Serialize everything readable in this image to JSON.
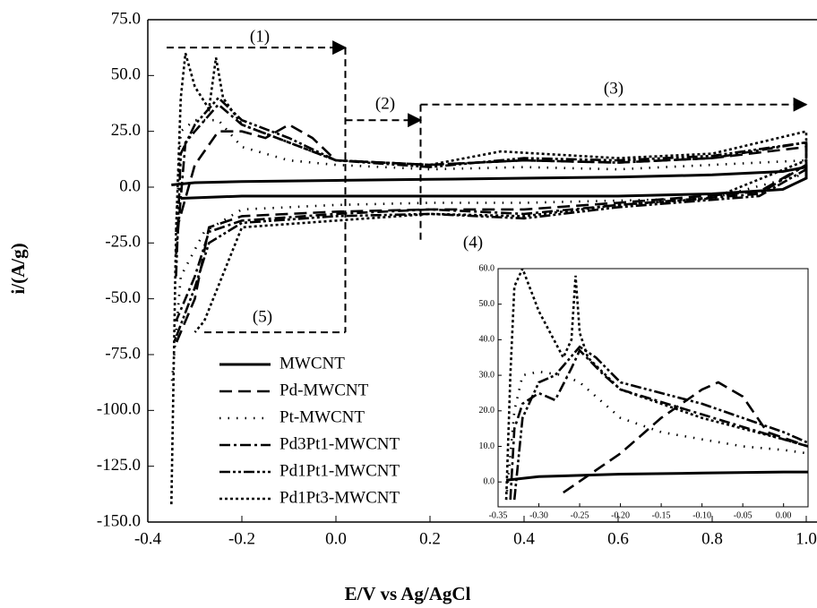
{
  "chart_data": [
    {
      "type": "line",
      "xlabel": "E/V vs Ag/AgCl",
      "ylabel": "i/(A/g)",
      "xlim": [
        -0.4,
        1.02
      ],
      "ylim": [
        -150,
        75
      ],
      "xticks": [
        -0.4,
        -0.2,
        {
          "value": 0,
          "label": "0.0"
        },
        0.2,
        0.4,
        0.6,
        0.8,
        {
          "value": 1,
          "label": "1.0"
        }
      ],
      "yticks": [
        {
          "value": 75,
          "label": "75.0"
        },
        {
          "value": 50,
          "label": "50.0"
        },
        {
          "value": 25,
          "label": "25.0"
        },
        {
          "value": 0,
          "label": "0.0"
        },
        {
          "value": -25,
          "label": "-25.0"
        },
        {
          "value": -50,
          "label": "-50.0"
        },
        {
          "value": -75,
          "label": "-75.0"
        },
        {
          "value": -100,
          "label": "-100.0"
        },
        {
          "value": -125,
          "label": "-125.0"
        },
        {
          "value": -150,
          "label": "-150.0"
        }
      ],
      "legend": "lower left",
      "annotations": [
        "(1)",
        "(2)",
        "(3)",
        "(4)",
        "(5)"
      ],
      "series": [
        {
          "name": "MWCNT",
          "color": "#000000",
          "linestyle": "solid",
          "x": [
            -0.35,
            -0.3,
            -0.2,
            0,
            0.2,
            0.4,
            0.6,
            0.8,
            0.95,
            1.0,
            1.0,
            0.95,
            0.8,
            0.6,
            0.4,
            0.2,
            0,
            -0.2,
            -0.33
          ],
          "values": [
            1,
            2,
            2.5,
            3,
            3.5,
            4,
            4.5,
            5.5,
            7,
            9,
            4,
            -1,
            -3,
            -4,
            -4,
            -4,
            -4,
            -4,
            -5
          ]
        },
        {
          "name": "Pd-MWCNT",
          "color": "#000000",
          "linestyle": "dashed",
          "x": [
            -0.34,
            -0.3,
            -0.25,
            -0.2,
            -0.15,
            -0.1,
            -0.05,
            0,
            0.2,
            0.4,
            0.6,
            0.8,
            1.0,
            1.0,
            0.9,
            0.6,
            0.4,
            0.2,
            0,
            -0.2,
            -0.27,
            -0.3,
            -0.34
          ],
          "values": [
            -20,
            10,
            25,
            25,
            22,
            28,
            22,
            12,
            10,
            12,
            11,
            13,
            18,
            10,
            -2,
            -7,
            -10,
            -10,
            -11,
            -13,
            -18,
            -50,
            -70
          ]
        },
        {
          "name": "Pt-MWCNT",
          "color": "#000000",
          "linestyle": "dotted",
          "x": [
            -0.34,
            -0.33,
            -0.3,
            -0.25,
            -0.2,
            -0.1,
            0,
            0.2,
            0.4,
            0.6,
            0.8,
            1.0,
            1.0,
            0.8,
            0.6,
            0.4,
            0.2,
            0,
            -0.2,
            -0.28,
            -0.33,
            -0.35
          ],
          "values": [
            -20,
            25,
            30,
            30,
            18,
            12,
            10,
            8,
            9,
            8,
            10,
            12,
            6,
            -5,
            -6,
            -7,
            -7,
            -8,
            -10,
            -20,
            -40,
            -90
          ]
        },
        {
          "name": "Pd3Pt1-MWCNT",
          "color": "#000000",
          "linestyle": "dashdot",
          "x": [
            -0.34,
            -0.32,
            -0.3,
            -0.25,
            -0.2,
            -0.1,
            0,
            0.2,
            0.4,
            0.6,
            0.8,
            1.0,
            1.0,
            0.9,
            0.6,
            0.4,
            0.2,
            0,
            -0.2,
            -0.27,
            -0.3,
            -0.34
          ],
          "values": [
            -30,
            20,
            25,
            37,
            28,
            20,
            12,
            10,
            12,
            11,
            13,
            20,
            10,
            -3,
            -8,
            -12,
            -10,
            -12,
            -15,
            -20,
            -40,
            -60
          ]
        },
        {
          "name": "Pd1Pt1-MWCNT",
          "color": "#000000",
          "linestyle": "dashdotdot",
          "x": [
            -0.34,
            -0.33,
            -0.3,
            -0.25,
            -0.2,
            -0.1,
            0,
            0.2,
            0.4,
            0.6,
            0.8,
            1.0,
            1.0,
            0.9,
            0.6,
            0.4,
            0.2,
            0,
            -0.2,
            -0.27,
            -0.3,
            -0.345
          ],
          "values": [
            -40,
            15,
            28,
            40,
            30,
            22,
            12,
            9,
            13,
            12,
            14,
            20,
            8,
            -4,
            -9,
            -14,
            -12,
            -13,
            -16,
            -25,
            -45,
            -70
          ]
        },
        {
          "name": "Pd1Pt3-MWCNT",
          "color": "#000000",
          "linestyle": "densedot",
          "x": [
            -0.35,
            -0.34,
            -0.33,
            -0.32,
            -0.3,
            -0.27,
            -0.255,
            -0.24,
            -0.2,
            -0.1,
            0,
            0.2,
            0.35,
            0.6,
            0.8,
            1.0,
            1.0,
            0.8,
            0.6,
            0.4,
            0.2,
            0,
            -0.2,
            -0.28,
            -0.3
          ],
          "values": [
            -142,
            -20,
            40,
            60,
            45,
            35,
            58,
            40,
            28,
            20,
            12,
            10,
            16,
            13,
            15,
            25,
            12,
            -5,
            -8,
            -13,
            -12,
            -15,
            -18,
            -60,
            -65
          ]
        }
      ]
    },
    {
      "type": "line",
      "xlim": [
        -0.35,
        0.03
      ],
      "ylim": [
        -7,
        60
      ],
      "xticks": [
        -0.35,
        {
          "value": -0.3,
          "label": "-0.30"
        },
        {
          "value": -0.25,
          "label": "-0.25"
        },
        {
          "value": -0.2,
          "label": "-0.20"
        },
        {
          "value": -0.15,
          "label": "-0.15"
        },
        {
          "value": -0.1,
          "label": "-0.10"
        },
        {
          "value": -0.05,
          "label": "-0.05"
        },
        {
          "value": 0,
          "label": "0.00"
        }
      ],
      "yticks": [
        {
          "value": 0,
          "label": "0.0"
        },
        {
          "value": 10,
          "label": "10.0"
        },
        {
          "value": 20,
          "label": "20.0"
        },
        {
          "value": 30,
          "label": "30.0"
        },
        {
          "value": 40,
          "label": "40.0"
        },
        {
          "value": 50,
          "label": "50.0"
        },
        {
          "value": 60,
          "label": "60.0"
        }
      ],
      "series": [
        {
          "color": "#000000",
          "linestyle": "solid",
          "x": [
            -0.34,
            -0.3,
            -0.2,
            -0.1,
            0,
            0.03
          ],
          "values": [
            0.5,
            1.5,
            2.2,
            2.5,
            2.8,
            2.8
          ]
        },
        {
          "color": "#000000",
          "linestyle": "dashed",
          "x": [
            -0.27,
            -0.2,
            -0.15,
            -0.1,
            -0.08,
            -0.05,
            -0.02,
            0.03
          ],
          "values": [
            -3,
            8,
            18,
            26,
            28,
            24,
            14,
            10
          ]
        },
        {
          "color": "#000000",
          "linestyle": "dotted",
          "x": [
            -0.34,
            -0.33,
            -0.32,
            -0.3,
            -0.27,
            -0.25,
            -0.2,
            -0.15,
            -0.1,
            -0.05,
            0,
            0.03
          ],
          "values": [
            -5,
            20,
            30,
            31,
            30,
            28,
            18,
            14,
            12,
            10,
            9,
            8
          ]
        },
        {
          "color": "#000000",
          "linestyle": "dashdot",
          "x": [
            -0.335,
            -0.33,
            -0.32,
            -0.3,
            -0.28,
            -0.26,
            -0.25,
            -0.22,
            -0.2,
            -0.1,
            0,
            0.03
          ],
          "values": [
            -5,
            15,
            22,
            25,
            23,
            32,
            37,
            30,
            26,
            19,
            12,
            10
          ]
        },
        {
          "color": "#000000",
          "linestyle": "dashdotdot",
          "x": [
            -0.33,
            -0.32,
            -0.3,
            -0.28,
            -0.25,
            -0.23,
            -0.2,
            -0.1,
            0,
            0.03
          ],
          "values": [
            -5,
            18,
            28,
            30,
            38,
            35,
            28,
            22,
            14,
            11
          ]
        },
        {
          "color": "#000000",
          "linestyle": "densedot",
          "x": [
            -0.34,
            -0.335,
            -0.33,
            -0.32,
            -0.3,
            -0.27,
            -0.26,
            -0.255,
            -0.25,
            -0.24,
            -0.2,
            -0.1,
            0,
            0.03
          ],
          "values": [
            -5,
            30,
            55,
            60,
            48,
            35,
            40,
            58,
            42,
            35,
            26,
            18,
            12,
            10
          ]
        }
      ]
    }
  ]
}
